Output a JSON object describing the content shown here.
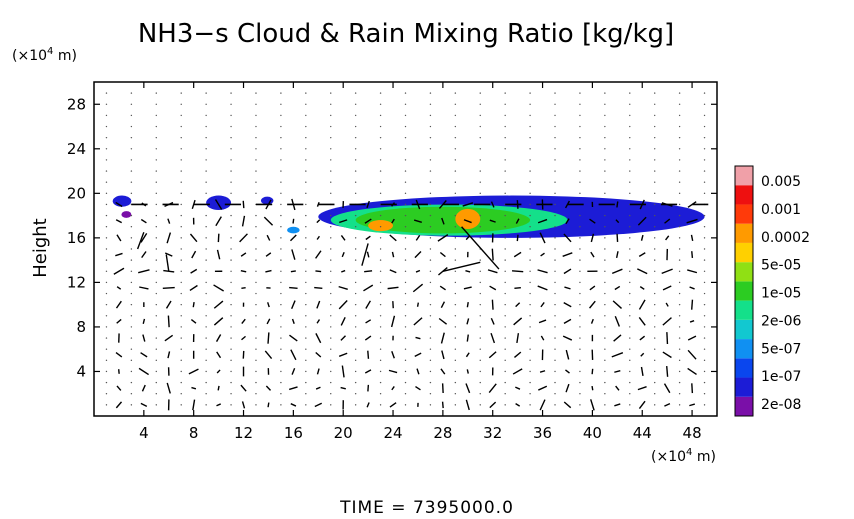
{
  "chart_data": {
    "type": "heatmap",
    "title": "NH3−s Cloud & Rain Mixing Ratio [kg/kg]",
    "y_unit_label": "(×10",
    "y_unit_exp": "4",
    "y_unit_suffix": " m)",
    "x_unit_label": "(×10",
    "x_unit_exp": "4",
    "x_unit_suffix": " m)",
    "ylabel": "Height",
    "footer": "TIME = 7395000.0",
    "xlim": [
      0,
      50
    ],
    "ylim": [
      0,
      30
    ],
    "x_ticks": [
      4,
      8,
      12,
      16,
      20,
      24,
      28,
      32,
      36,
      40,
      44,
      48
    ],
    "y_ticks": [
      4,
      8,
      12,
      16,
      20,
      24,
      28
    ],
    "colorbar": {
      "labels": [
        "0.005",
        "0.001",
        "0.0002",
        "5e-05",
        "1e-05",
        "2e-06",
        "5e-07",
        "1e-07",
        "2e-08"
      ],
      "colors": [
        "#7a0fa8",
        "#1c1cd6",
        "#0a46ee",
        "#1090f2",
        "#12c8d0",
        "#14e08a",
        "#2ccc22",
        "#90e014",
        "#ffd000",
        "#ff9a00",
        "#ff3a0a",
        "#ee1010",
        "#f0a0a8"
      ]
    },
    "cloud_regions": [
      {
        "x": [
          1.5,
          3.0
        ],
        "y": [
          18.8,
          19.8
        ],
        "level": "1e-07"
      },
      {
        "x": [
          2.2,
          3.0
        ],
        "y": [
          17.8,
          18.4
        ],
        "level": "2e-08"
      },
      {
        "x": [
          9.0,
          11.0
        ],
        "y": [
          18.5,
          19.8
        ],
        "level": "1e-07"
      },
      {
        "x": [
          13.4,
          14.4
        ],
        "y": [
          19.0,
          19.7
        ],
        "level": "1e-07"
      },
      {
        "x": [
          15.5,
          16.5
        ],
        "y": [
          16.4,
          17.0
        ],
        "level": "5e-07"
      },
      {
        "x": [
          18.0,
          49.0
        ],
        "y": [
          16.0,
          19.8
        ],
        "level": "1e-07"
      },
      {
        "x": [
          19.0,
          38.0
        ],
        "y": [
          16.2,
          19.0
        ],
        "level": "2e-06"
      },
      {
        "x": [
          21.0,
          35.0
        ],
        "y": [
          16.4,
          18.8
        ],
        "level": "1e-05"
      },
      {
        "x": [
          29.0,
          31.0
        ],
        "y": [
          16.8,
          18.6
        ],
        "level": "0.0002"
      },
      {
        "x": [
          22.0,
          24.0
        ],
        "y": [
          16.6,
          17.6
        ],
        "level": "0.0002"
      }
    ]
  }
}
